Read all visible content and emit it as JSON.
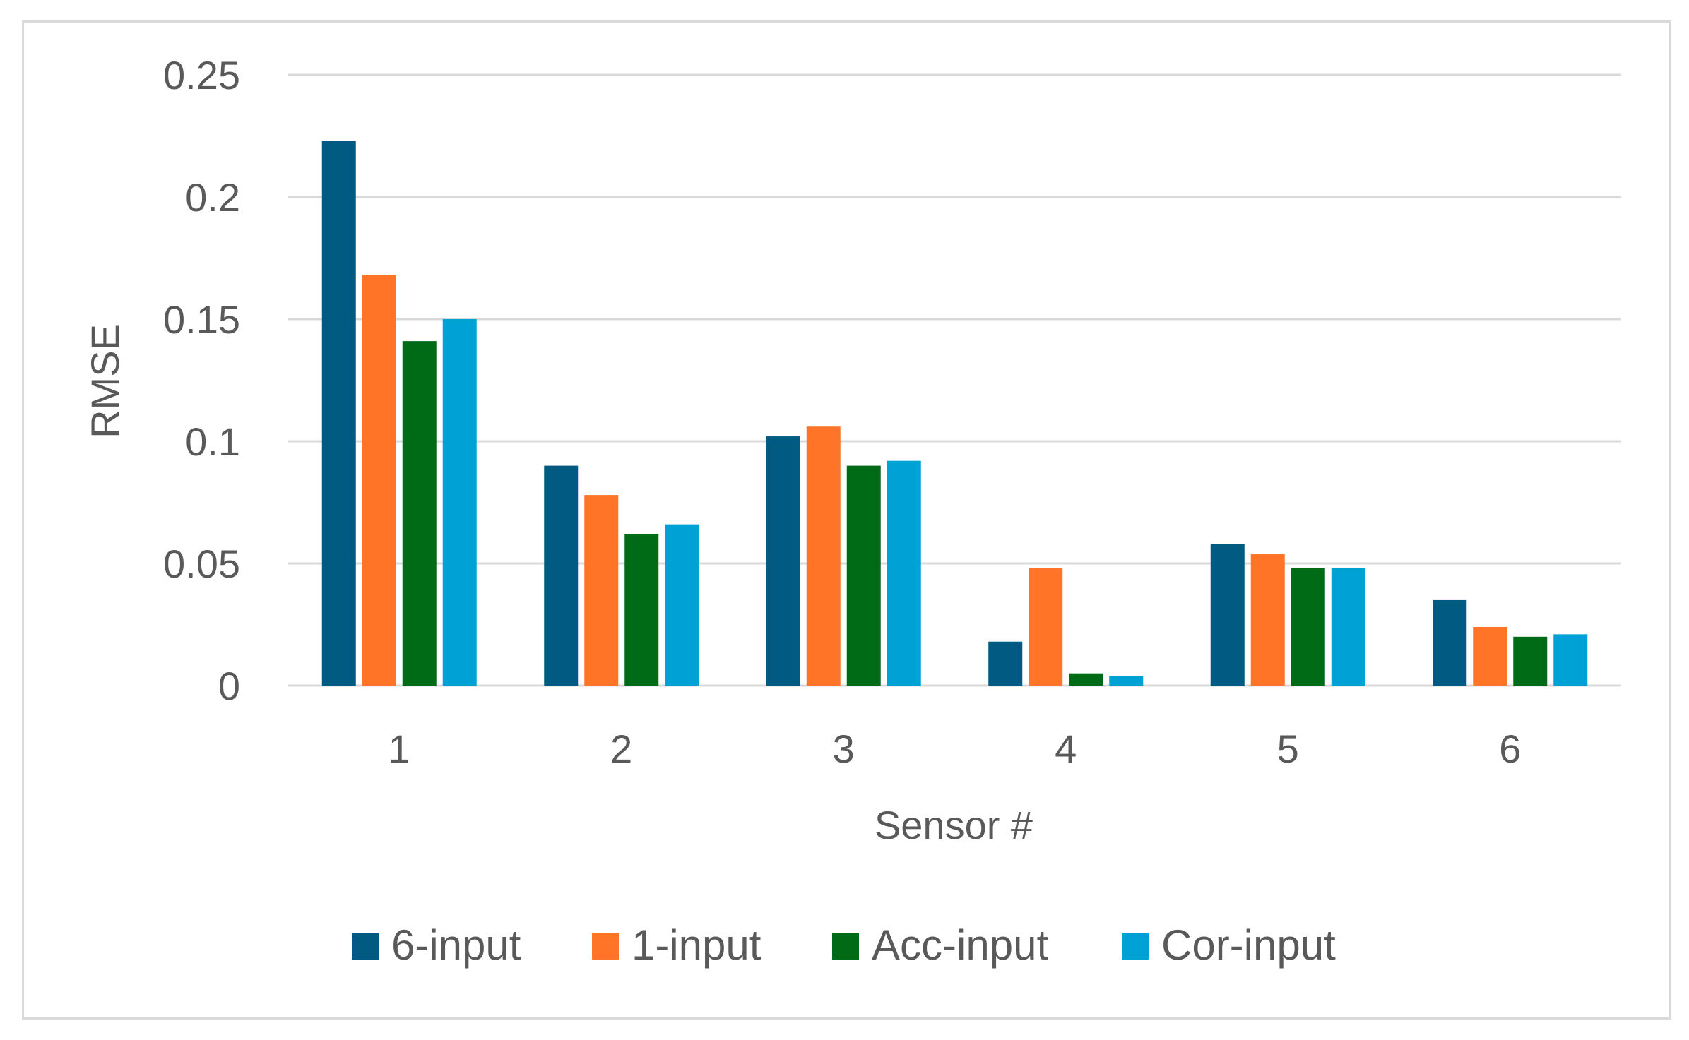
{
  "chart_data": {
    "type": "bar",
    "title": "",
    "xlabel": "Sensor #",
    "ylabel": "RMSE",
    "categories": [
      "1",
      "2",
      "3",
      "4",
      "5",
      "6"
    ],
    "series": [
      {
        "name": "6-input",
        "color": "#005a82",
        "values": [
          0.223,
          0.09,
          0.102,
          0.018,
          0.058,
          0.035
        ]
      },
      {
        "name": "1-input",
        "color": "#ff7427",
        "values": [
          0.168,
          0.078,
          0.106,
          0.048,
          0.054,
          0.024
        ]
      },
      {
        "name": "Acc-input",
        "color": "#006b17",
        "values": [
          0.141,
          0.062,
          0.09,
          0.005,
          0.048,
          0.02
        ]
      },
      {
        "name": "Cor-input",
        "color": "#00a2d6",
        "values": [
          0.15,
          0.066,
          0.092,
          0.004,
          0.048,
          0.021
        ]
      }
    ],
    "ylim": [
      0,
      0.25
    ],
    "yticks": [
      "0",
      "0.05",
      "0.1",
      "0.15",
      "0.2",
      "0.25"
    ],
    "grid": true,
    "legend_position": "bottom"
  }
}
